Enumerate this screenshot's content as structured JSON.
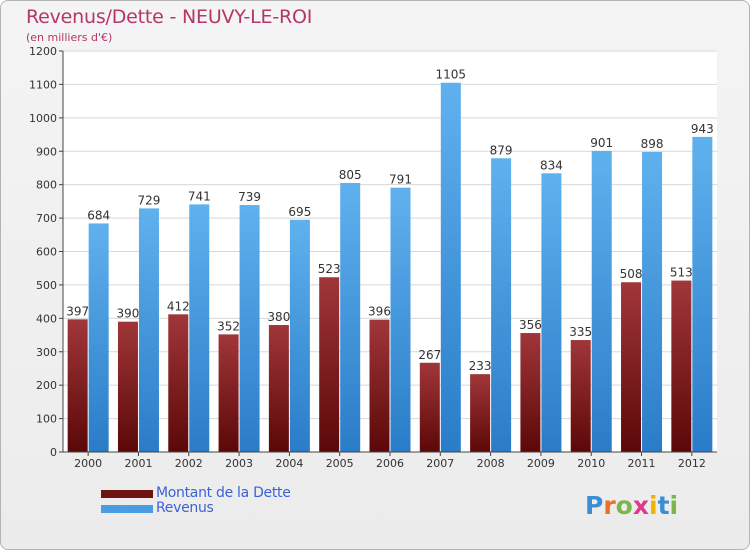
{
  "header": {
    "title": "Revenus/Dette - NEUVY-LE-ROI",
    "subtitle": "(en milliers d'€)"
  },
  "legend": {
    "items": [
      {
        "label": "Montant de la Dette",
        "color": "#6e1212"
      },
      {
        "label": "Revenus",
        "color": "#4a9de2"
      }
    ]
  },
  "logo": {
    "letters": [
      "P",
      "r",
      "o",
      "x",
      "i",
      "t",
      "i"
    ],
    "colors": [
      "#3a8fd4",
      "#e8702a",
      "#7ab648",
      "#e03a8a",
      "#f0b400",
      "#3a8fd4",
      "#7ab648"
    ]
  },
  "colors": {
    "dette_top": "#a0363a",
    "dette_bottom": "#5c0808",
    "revenus_top": "#5fb1ee",
    "revenus_bottom": "#2a7cc8"
  },
  "chart_data": {
    "type": "bar",
    "title": "Revenus/Dette - NEUVY-LE-ROI",
    "subtitle": "(en milliers d'€)",
    "categories": [
      "2000",
      "2001",
      "2002",
      "2003",
      "2004",
      "2005",
      "2006",
      "2007",
      "2008",
      "2009",
      "2010",
      "2011",
      "2012"
    ],
    "series": [
      {
        "name": "Montant de la Dette",
        "values": [
          397,
          390,
          412,
          352,
          380,
          523,
          396,
          267,
          233,
          356,
          335,
          508,
          513
        ]
      },
      {
        "name": "Revenus",
        "values": [
          684,
          729,
          741,
          739,
          695,
          805,
          791,
          1105,
          879,
          834,
          901,
          898,
          943
        ]
      }
    ],
    "yticks": [
      0,
      100,
      200,
      300,
      400,
      500,
      600,
      700,
      800,
      900,
      1000,
      1100,
      1200
    ],
    "ylim": [
      0,
      1200
    ],
    "grid": true,
    "legend_position": "bottom-left"
  }
}
